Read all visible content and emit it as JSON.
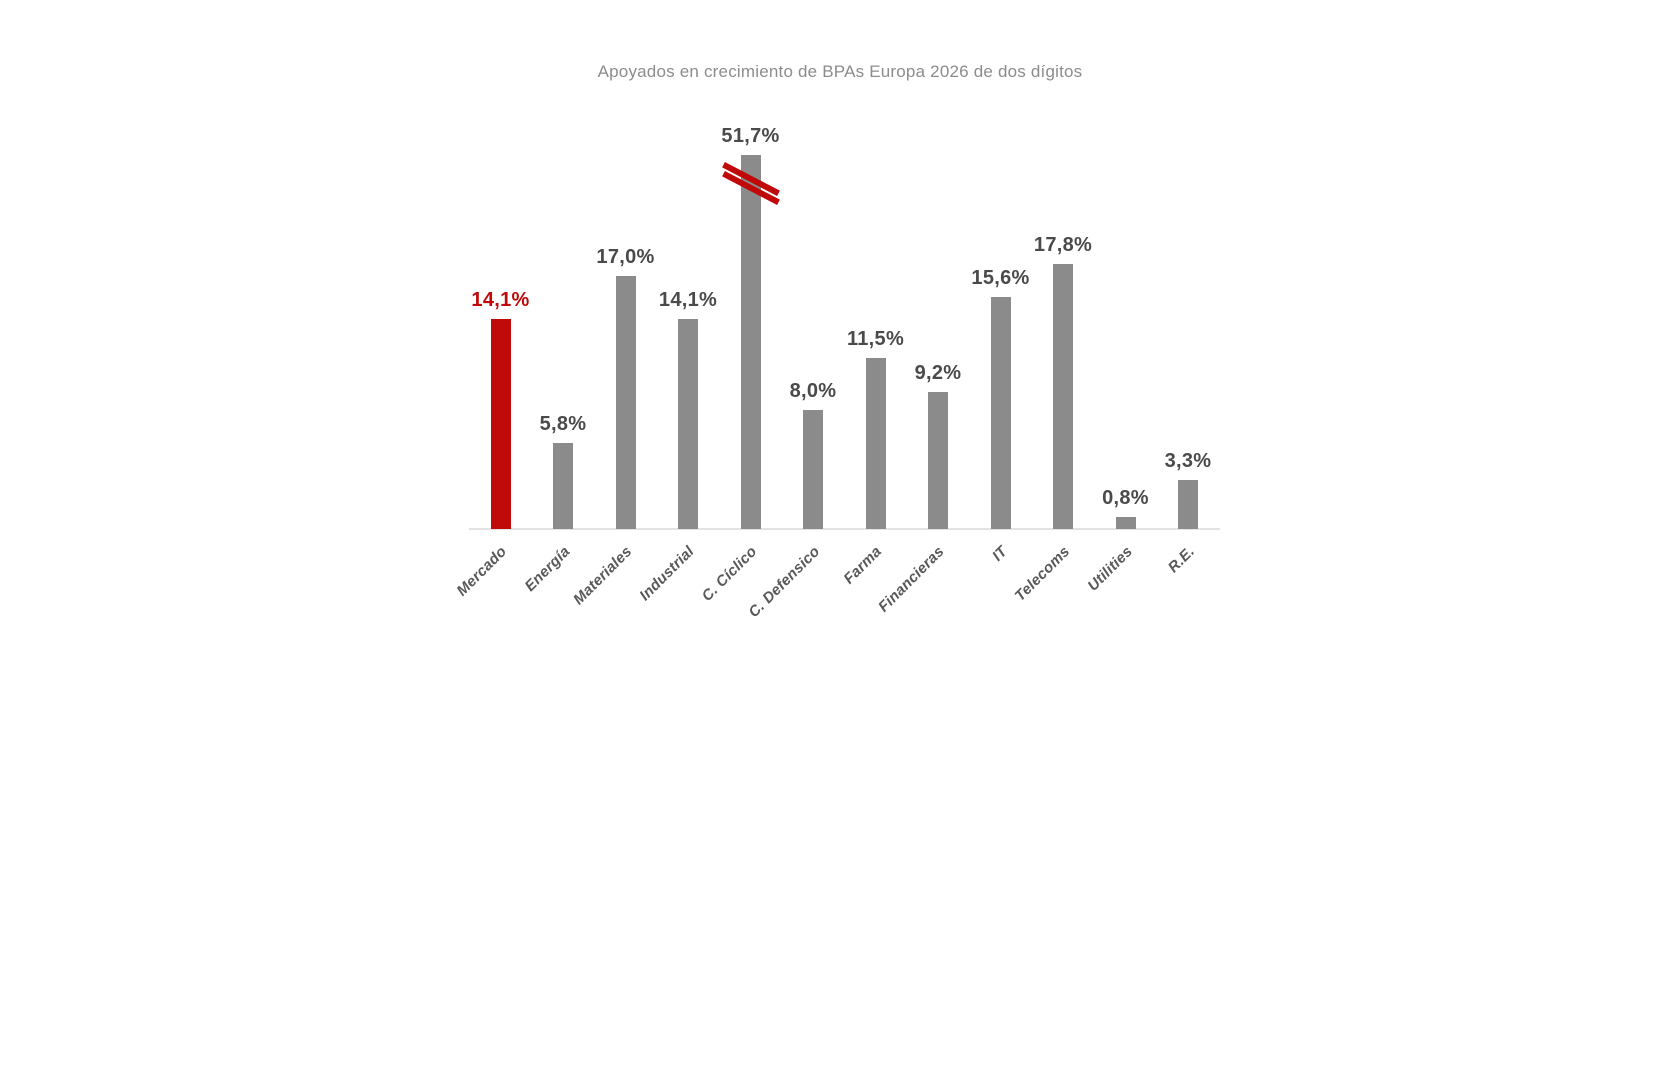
{
  "title": "Apoyados en crecimiento de BPAs Europa 2026 de dos dígitos",
  "chart_data": {
    "type": "bar",
    "title": "Apoyados en crecimiento de BPAs Europa 2026 de dos dígitos",
    "categories": [
      "Mercado",
      "Energía",
      "Materiales",
      "Industrial",
      "C. Cíclico",
      "C. Defensico",
      "Farma",
      "Financieras",
      "IT",
      "Telecoms",
      "Utilities",
      "R.E."
    ],
    "values": [
      14.1,
      5.8,
      17.0,
      14.1,
      51.7,
      8.0,
      11.5,
      9.2,
      15.6,
      17.8,
      0.8,
      3.3
    ],
    "value_labels": [
      "14,1%",
      "5,8%",
      "17,0%",
      "14,1%",
      "51,7%",
      "8,0%",
      "11,5%",
      "9,2%",
      "15,6%",
      "17,8%",
      "0,8%",
      "3,3%"
    ],
    "unit": "%",
    "highlight_index": 0,
    "axis_break": {
      "index": 4,
      "note": "bar truncated with red double-slash break mark",
      "displayed_equivalent_value": 25.1
    },
    "xlabel": "",
    "ylabel": "",
    "ylim": [
      0,
      55
    ],
    "grid": false,
    "legend": false,
    "y_axis_ticks_visible": false,
    "colors": {
      "highlight_bar": "#C00A0A",
      "default_bar": "#8B8B8B",
      "value_label": "#4A4A4A",
      "value_label_highlight": "#C00A0A",
      "category_label": "#595959",
      "axis_line": "#E2E2E2",
      "title": "#8C8C8C",
      "break_mark": "#C00A0A",
      "background": "#FFFFFF"
    }
  }
}
